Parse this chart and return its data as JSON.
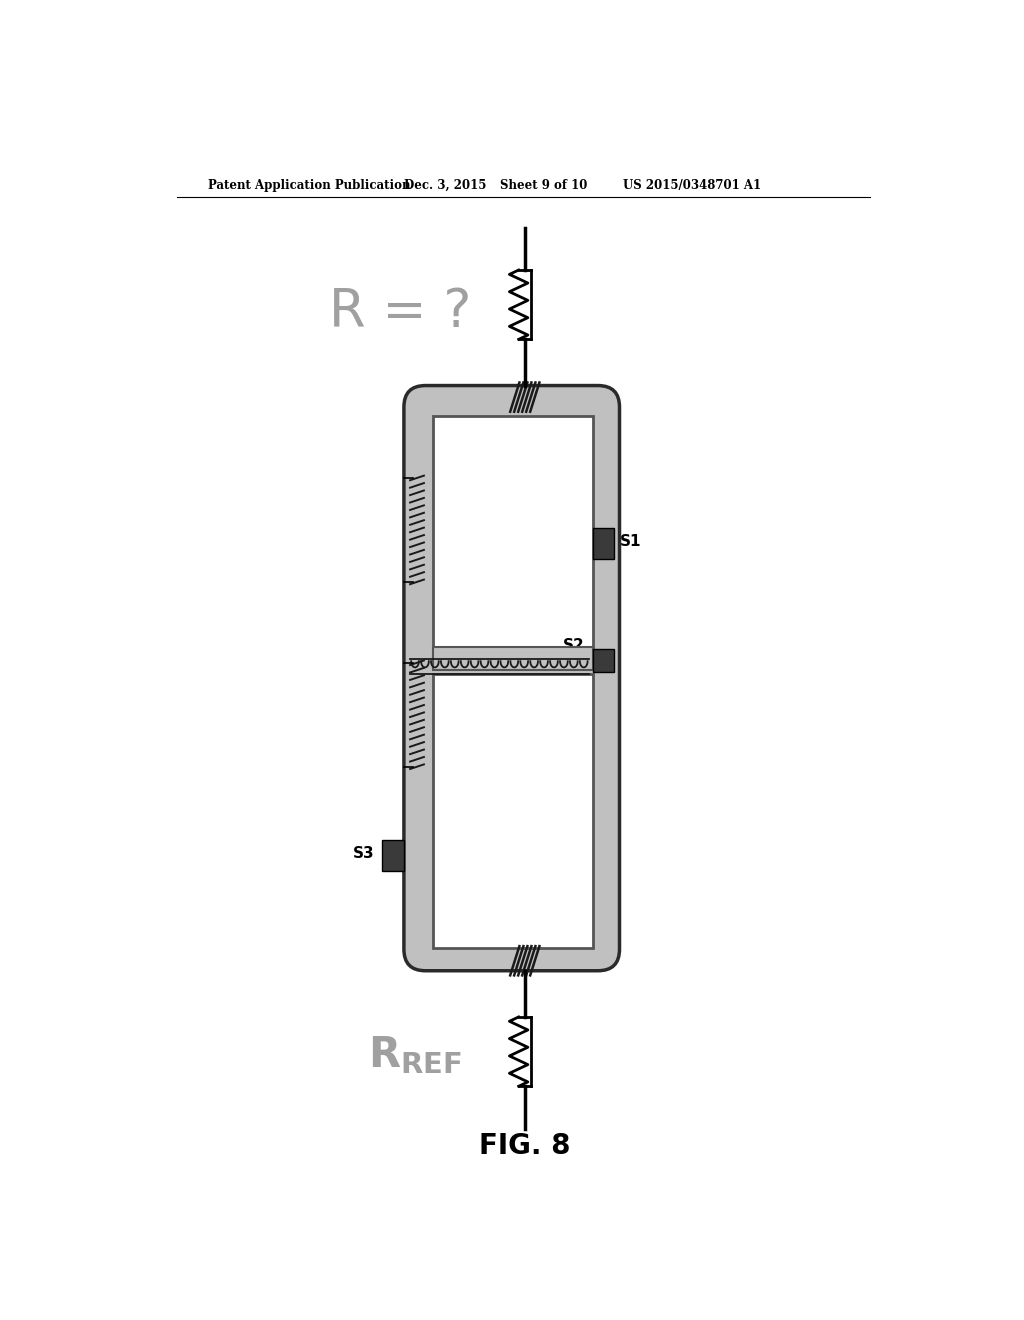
{
  "bg_color": "#ffffff",
  "header_text": "Patent Application Publication",
  "header_date": "Dec. 3, 2015",
  "header_sheet": "Sheet 9 of 10",
  "header_patent": "US 2015/0348701 A1",
  "fig_label": "FIG. 8",
  "R_label": "R = ?",
  "S1_label": "S1",
  "S2_label": "S2",
  "S3_label": "S3",
  "outer_box_gray": "#c0c0c0",
  "outer_box_edge": "#2a2a2a",
  "inner_white": "#ffffff",
  "dark_sensor_color": "#3a3a3a",
  "coil_color": "#1a1a1a",
  "wire_color": "#000000",
  "text_gray": "#a0a0a0"
}
